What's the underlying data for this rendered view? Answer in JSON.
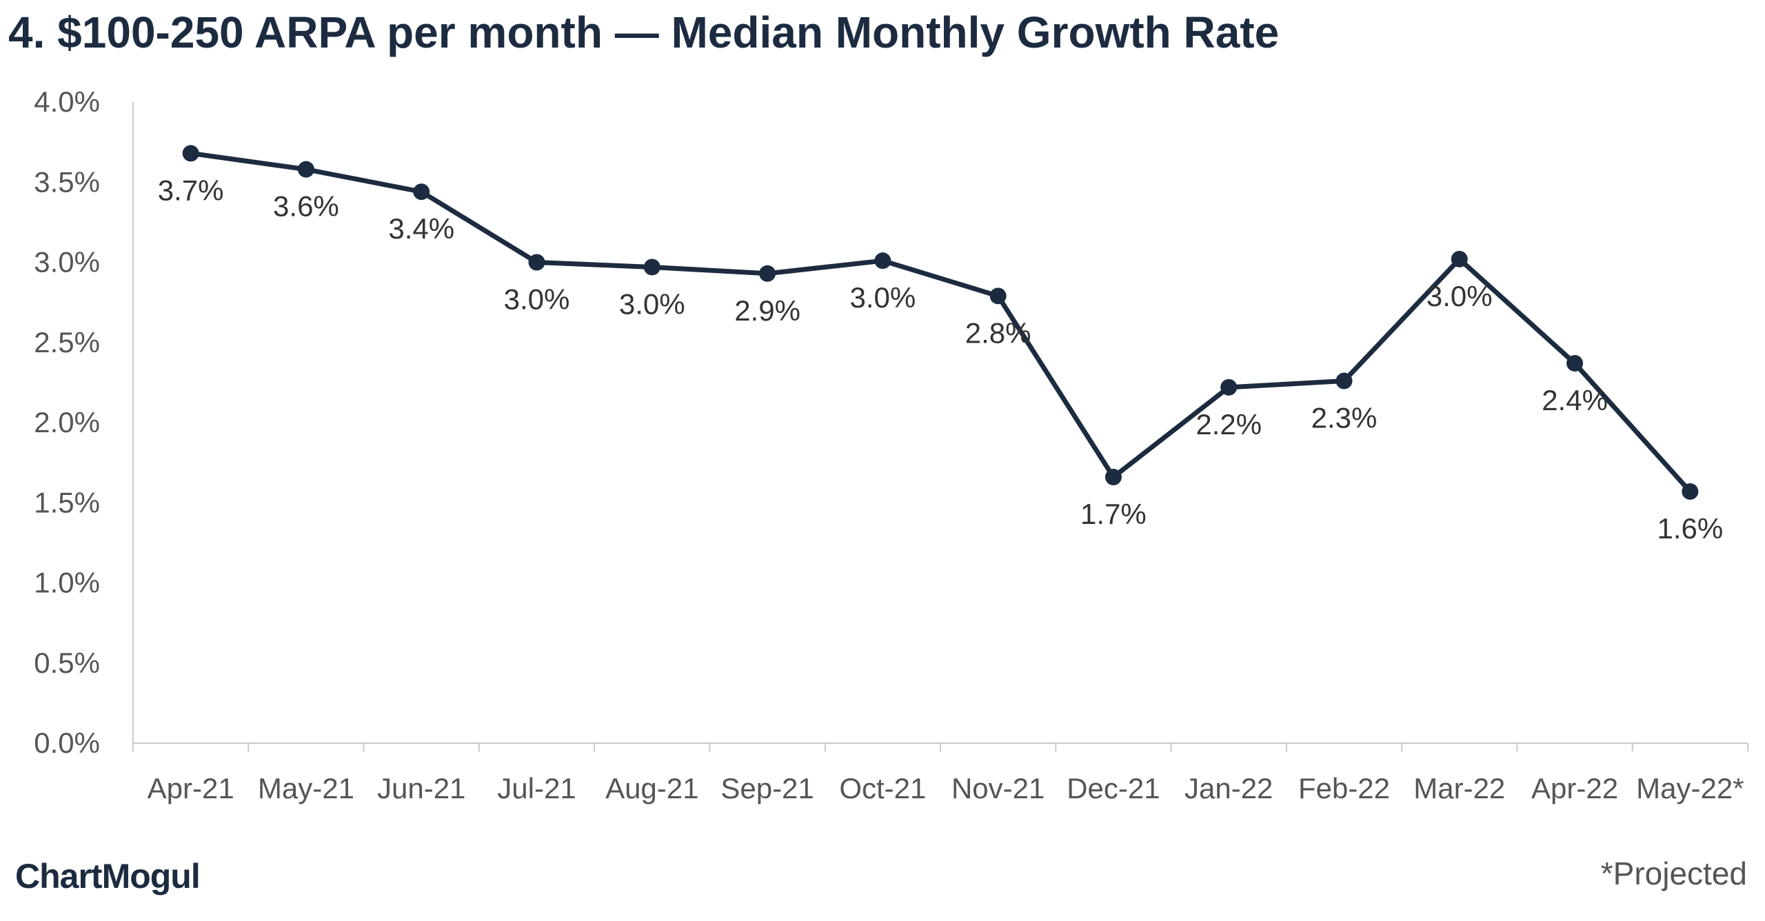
{
  "title": "4. $100-250 ARPA per month — Median Monthly Growth Rate",
  "brand": "ChartMogul",
  "footnote": "*Projected",
  "colors": {
    "line": "#1c2b40",
    "axis": "#c8c8c8",
    "text": "#333333"
  },
  "chart_data": {
    "type": "line",
    "title": "4. $100-250 ARPA per month — Median Monthly Growth Rate",
    "xlabel": "",
    "ylabel": "",
    "categories": [
      "Apr-21",
      "May-21",
      "Jun-21",
      "Jul-21",
      "Aug-21",
      "Sep-21",
      "Oct-21",
      "Nov-21",
      "Dec-21",
      "Jan-22",
      "Feb-22",
      "Mar-22",
      "Apr-22",
      "May-22*"
    ],
    "values": [
      3.68,
      3.58,
      3.44,
      3.0,
      2.97,
      2.93,
      3.01,
      2.79,
      1.66,
      2.22,
      2.26,
      3.02,
      2.37,
      1.57
    ],
    "data_labels": [
      "3.7%",
      "3.6%",
      "3.4%",
      "3.0%",
      "3.0%",
      "2.9%",
      "3.0%",
      "2.8%",
      "1.7%",
      "2.2%",
      "2.3%",
      "3.0%",
      "2.4%",
      "1.6%"
    ],
    "ylim": [
      0,
      4.0
    ],
    "yticks": [
      "0.0%",
      "0.5%",
      "1.0%",
      "1.5%",
      "2.0%",
      "2.5%",
      "3.0%",
      "3.5%",
      "4.0%"
    ],
    "grid": false,
    "legend": "none"
  }
}
